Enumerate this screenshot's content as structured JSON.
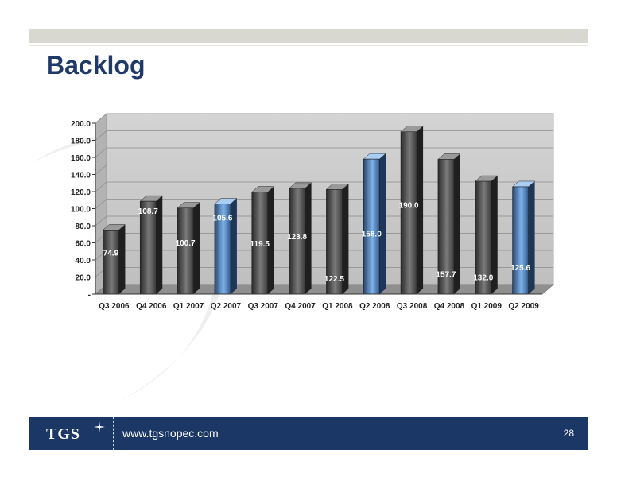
{
  "slide": {
    "title": "Backlog",
    "url": "www.tgsnopec.com",
    "page_number": "28",
    "logo_text": "TGS"
  },
  "colors": {
    "title": "#1f3a68",
    "footer": "#1b3766",
    "bar_dark": "#555555",
    "bar_highlight": "#6a9fd8"
  },
  "chart_data": {
    "type": "bar",
    "title": "",
    "xlabel": "",
    "ylabel": "",
    "ylim": [
      0,
      200
    ],
    "y_ticks": [
      "-",
      "20.0",
      "40.0",
      "60.0",
      "80.0",
      "100.0",
      "120.0",
      "140.0",
      "160.0",
      "180.0",
      "200.0"
    ],
    "categories": [
      "Q3 2006",
      "Q4 2006",
      "Q1 2007",
      "Q2 2007",
      "Q3 2007",
      "Q4 2007",
      "Q1 2008",
      "Q2 2008",
      "Q3 2008",
      "Q4 2008",
      "Q1 2009",
      "Q2 2009"
    ],
    "values": [
      74.9,
      108.7,
      100.7,
      105.6,
      119.5,
      123.8,
      122.5,
      158.0,
      190.0,
      157.7,
      132.0,
      125.6
    ],
    "labels": [
      "74.9",
      "108.7",
      "100.7",
      "105.6",
      "119.5",
      "123.8",
      "122.5",
      "158.0",
      "190.0",
      "157.7",
      "132.0",
      "125.6"
    ],
    "highlighted": [
      false,
      false,
      false,
      true,
      false,
      false,
      false,
      true,
      false,
      false,
      false,
      true
    ],
    "grid": true,
    "legend": "none"
  }
}
